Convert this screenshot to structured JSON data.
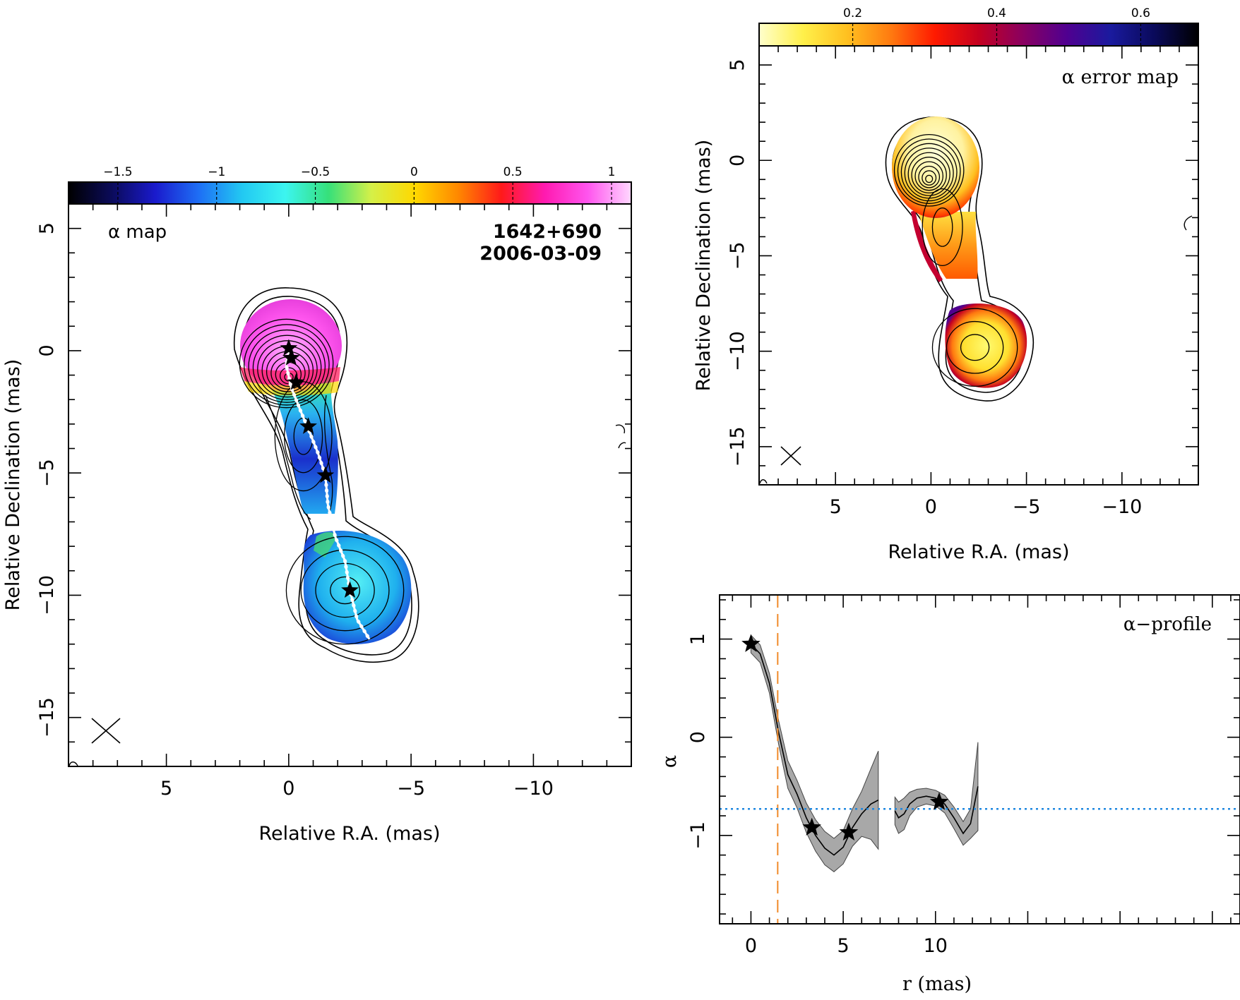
{
  "colors": {
    "alpha_ramp": [
      "#000000",
      "#0b0b5a",
      "#1a1acc",
      "#1e6ef5",
      "#22c8f2",
      "#3cf5f0",
      "#36e07a",
      "#d5f048",
      "#ffd800",
      "#ff8800",
      "#ff1a1a",
      "#ff1ab0",
      "#ff55ee",
      "#ffd8ff"
    ],
    "error_ramp": [
      "#ffffcc",
      "#fff04a",
      "#ffc020",
      "#ff7a10",
      "#ff1a00",
      "#c40020",
      "#8a0060",
      "#500090",
      "#1a1a9e",
      "#0a0a5a",
      "#000000"
    ],
    "profile_band": "#a8a8a8",
    "threshold_line": "#1f88e0",
    "vertical_marker": "#f08a2a"
  },
  "chart_data": [
    {
      "id": "alpha-map",
      "type": "heatmap",
      "title": "α map",
      "source": "1642+690",
      "date": "2006-03-09",
      "xlabel": "Relative R.A. (mas)",
      "ylabel": "Relative Declination (mas)",
      "xlim": [
        9,
        -14
      ],
      "ylim": [
        -17,
        6
      ],
      "xticks": [
        5,
        0,
        -5,
        -10
      ],
      "yticks": [
        5,
        0,
        -5,
        -10,
        -15
      ],
      "colorbar": {
        "range": [
          -1.75,
          1.1
        ],
        "ticks": [
          -1.5,
          -1,
          -0.5,
          0,
          0.5,
          1
        ]
      },
      "components": [
        {
          "x": 0.1,
          "y": -0.5,
          "rx": 1.8,
          "ry": 1.5
        },
        {
          "x": -0.6,
          "y": -3.5,
          "rx": 1.2,
          "ry": 2.3
        },
        {
          "x": -2.3,
          "y": -9.8,
          "rx": 2.4,
          "ry": 2.2
        }
      ],
      "ridge": [
        [
          0,
          0
        ],
        [
          0.1,
          -0.6
        ],
        [
          -0.1,
          -1.5
        ],
        [
          -0.5,
          -2.5
        ],
        [
          -0.8,
          -3.2
        ],
        [
          -1.2,
          -4.2
        ],
        [
          -1.5,
          -5.1
        ],
        [
          -1.6,
          -6.3
        ],
        [
          -1.9,
          -7.6
        ],
        [
          -2.3,
          -8.6
        ],
        [
          -2.5,
          -9.8
        ],
        [
          -2.8,
          -11.0
        ],
        [
          -3.3,
          -11.8
        ]
      ],
      "stars": [
        [
          0,
          0.1
        ],
        [
          -0.1,
          -0.3
        ],
        [
          -0.3,
          -1.3
        ],
        [
          -0.8,
          -3.1
        ],
        [
          -1.5,
          -5.1
        ],
        [
          -2.5,
          -9.8
        ]
      ]
    },
    {
      "id": "error-map",
      "type": "heatmap",
      "title": "α error map",
      "xlabel": "Relative R.A. (mas)",
      "ylabel": "Relative Declination (mas)",
      "xlim": [
        9,
        -14
      ],
      "ylim": [
        -17,
        6
      ],
      "xticks": [
        5,
        0,
        -5,
        -10
      ],
      "yticks": [
        5,
        0,
        -5,
        -10,
        -15
      ],
      "colorbar": {
        "range": [
          0.07,
          0.68
        ],
        "ticks": [
          0.2,
          0.4,
          0.6
        ]
      }
    },
    {
      "id": "alpha-profile",
      "type": "line",
      "title": "α−profile",
      "xlabel": "r (mas)",
      "ylabel": "α",
      "xlim": [
        -1.7,
        26.5
      ],
      "ylim": [
        -1.9,
        1.45
      ],
      "xticks": [
        0,
        5,
        10
      ],
      "yticks": [
        1,
        0,
        -1
      ],
      "vline_x": 1.45,
      "hline_y": -0.73,
      "series": [
        {
          "x": [
            0,
            0.5,
            1,
            1.5,
            2,
            2.5,
            3,
            3.5,
            4,
            4.5,
            5,
            5.5,
            6,
            6.5,
            6.9
          ],
          "y": [
            0.95,
            0.85,
            0.55,
            0.05,
            -0.38,
            -0.58,
            -0.82,
            -1.0,
            -1.13,
            -1.2,
            -1.12,
            -0.92,
            -0.78,
            -0.68,
            -0.64
          ],
          "err": [
            0.09,
            0.09,
            0.1,
            0.12,
            0.14,
            0.14,
            0.15,
            0.16,
            0.17,
            0.17,
            0.17,
            0.19,
            0.23,
            0.36,
            0.5
          ]
        },
        {
          "x": [
            7.8,
            8.0,
            8.3,
            8.6,
            9.0,
            9.5,
            10.0,
            10.5,
            11.0,
            11.5,
            11.9,
            12.3
          ],
          "y": [
            -0.75,
            -0.82,
            -0.78,
            -0.68,
            -0.62,
            -0.6,
            -0.62,
            -0.68,
            -0.82,
            -0.98,
            -0.88,
            -0.5
          ],
          "err": [
            0.14,
            0.16,
            0.16,
            0.12,
            0.09,
            0.08,
            0.08,
            0.09,
            0.11,
            0.12,
            0.15,
            0.45
          ]
        }
      ],
      "stars": [
        [
          0,
          0.95
        ],
        [
          3.3,
          -0.92
        ],
        [
          5.3,
          -0.97
        ],
        [
          10.2,
          -0.66
        ]
      ]
    }
  ]
}
